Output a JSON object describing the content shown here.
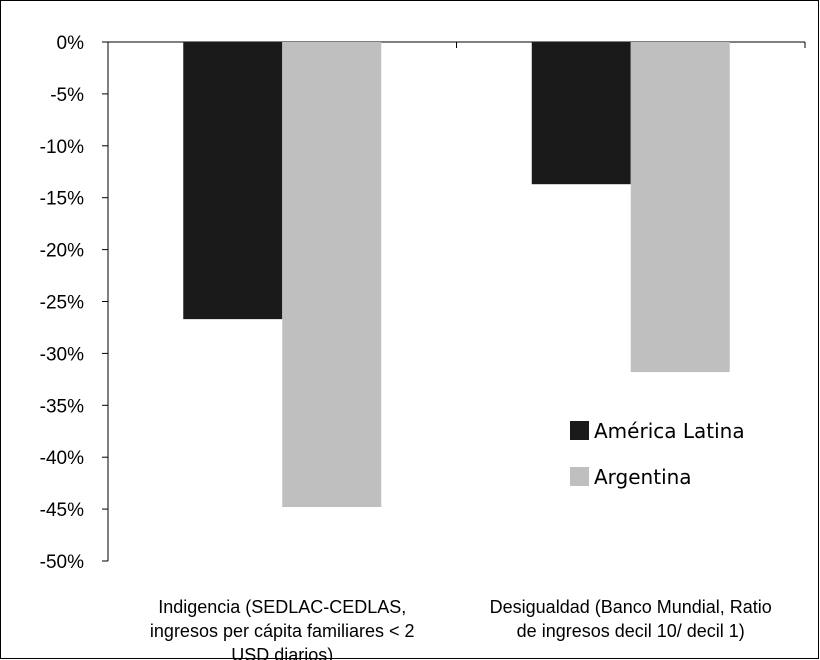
{
  "chart_data": {
    "type": "bar",
    "categories": [
      [
        "Indigencia (SEDLAC-CEDLAS,",
        "ingresos per cápita familiares < 2",
        "USD diarios)"
      ],
      [
        "Desigualdad (Banco Mundial, Ratio",
        "de ingresos decil 10/ decil 1)"
      ]
    ],
    "series": [
      {
        "name": "América Latina",
        "color": "#1a1a1a",
        "values": [
          -26.7,
          -13.7
        ]
      },
      {
        "name": "Argentina",
        "color": "#bfbfbf",
        "values": [
          -44.8,
          -31.8
        ]
      }
    ],
    "ylim": [
      -50,
      0
    ],
    "yticks": [
      0,
      -5,
      -10,
      -15,
      -20,
      -25,
      -30,
      -35,
      -40,
      -45,
      -50
    ],
    "tick_labels": [
      "0%",
      "-5%",
      "-10%",
      "-15%",
      "-20%",
      "-25%",
      "-30%",
      "-35%",
      "-40%",
      "-45%",
      "-50%"
    ],
    "legend_position": "right",
    "grid": false
  }
}
